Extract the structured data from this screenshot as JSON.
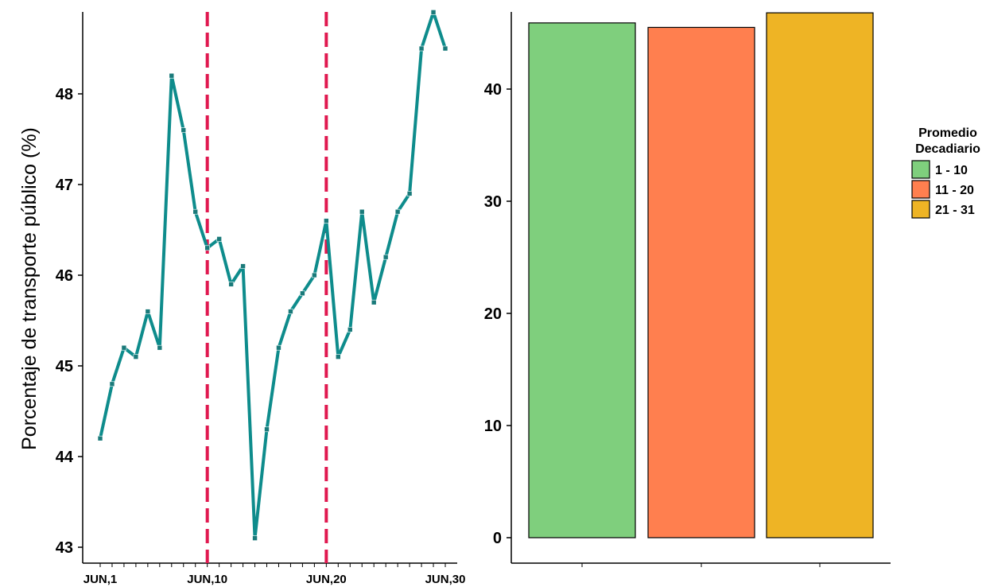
{
  "chart_data": [
    {
      "type": "line",
      "ylabel": "Porcentaje de transporte público (%)",
      "xlabel": "",
      "x_tick_labels": [
        "JUN,1",
        "JUN,10",
        "JUN,20",
        "JUN,30"
      ],
      "x_tick_days": [
        1,
        10,
        20,
        30
      ],
      "y_ticks": [
        43,
        44,
        45,
        46,
        47,
        48
      ],
      "xlim": [
        1,
        30
      ],
      "ylim": [
        42.9,
        48.9
      ],
      "series": [
        {
          "x": [
            1,
            2,
            3,
            4,
            5,
            6,
            7,
            8,
            9,
            10,
            11,
            12,
            13,
            14,
            15,
            16,
            17,
            18,
            19,
            20,
            21,
            22,
            23,
            24,
            25,
            26,
            27,
            28,
            29,
            30
          ],
          "values": [
            44.2,
            44.8,
            45.2,
            45.1,
            45.6,
            45.2,
            48.2,
            47.6,
            46.7,
            46.3,
            46.4,
            45.9,
            46.1,
            43.1,
            44.3,
            45.2,
            45.6,
            45.8,
            46.0,
            46.6,
            45.1,
            45.4,
            46.7,
            45.7,
            46.2,
            46.7,
            46.9,
            48.5,
            48.9,
            48.5
          ],
          "color": "#0e8c8c"
        }
      ],
      "vlines": [
        10,
        20
      ],
      "vline_color": "#e0184f",
      "grid": false
    },
    {
      "type": "bar",
      "categories": [
        "1 - 10",
        "11 - 20",
        "21 - 31"
      ],
      "values": [
        45.9,
        45.5,
        46.8
      ],
      "colors": [
        "#7fcf7d",
        "#ff7f4f",
        "#eeb425"
      ],
      "y_ticks": [
        0,
        10,
        20,
        30,
        40
      ],
      "ylim": [
        0,
        46.8
      ],
      "legend": {
        "title_lines": [
          "Promedio",
          "Decadiario"
        ],
        "position": "right"
      },
      "grid": false
    }
  ]
}
